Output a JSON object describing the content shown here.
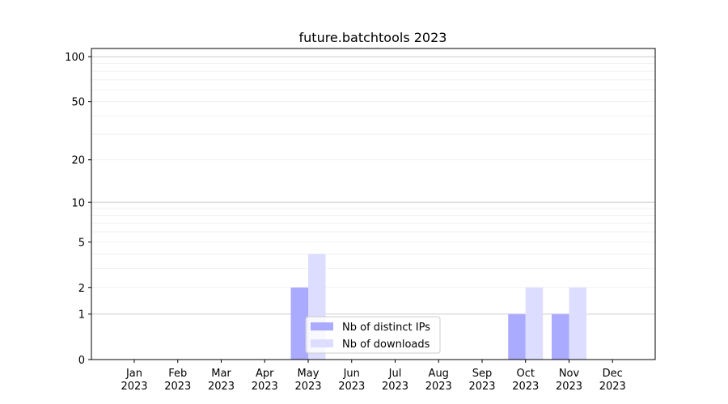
{
  "chart_data": {
    "type": "bar",
    "title": "future.batchtools 2023",
    "xlabel": "",
    "ylabel": "",
    "yscale": "log(1+y)",
    "ylim": [
      0,
      113
    ],
    "grid": true,
    "legend_position": "bottom-center",
    "categories": [
      "Jan\n2023",
      "Feb\n2023",
      "Mar\n2023",
      "Apr\n2023",
      "May\n2023",
      "Jun\n2023",
      "Jul\n2023",
      "Aug\n2023",
      "Sep\n2023",
      "Oct\n2023",
      "Nov\n2023",
      "Dec\n2023"
    ],
    "yticks": [
      0,
      1,
      2,
      5,
      10,
      20,
      50,
      100
    ],
    "series": [
      {
        "name": "Nb of distinct IPs",
        "color": "#aaaaff",
        "values": [
          0,
          0,
          0,
          0,
          2,
          0,
          0,
          0,
          0,
          1,
          1,
          0
        ]
      },
      {
        "name": "Nb of downloads",
        "color": "#ddddff",
        "values": [
          0,
          0,
          0,
          0,
          4,
          0,
          0,
          0,
          0,
          2,
          2,
          0
        ]
      }
    ]
  }
}
